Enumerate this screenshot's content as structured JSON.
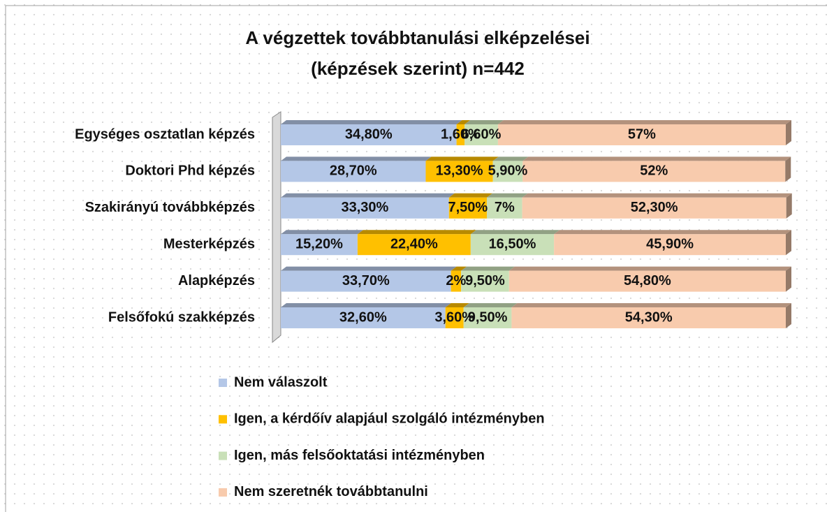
{
  "chart_data": {
    "type": "stacked-bar-horizontal",
    "title": [
      "A végzettek továbbtanulási elképzelései",
      "(képzések szerint) n=442"
    ],
    "categories": [
      "Egységes osztatlan képzés",
      "Doktori Phd képzés",
      "Szakirányú továbbképzés",
      "Mesterképzés",
      "Alapképzés",
      "Felsőfokú szakképzés"
    ],
    "xlim": [
      0,
      100
    ],
    "legend": "bottom",
    "series": [
      {
        "name": "Nem válaszolt",
        "color": "#b4c7e7",
        "values": [
          34.8,
          28.7,
          33.3,
          15.2,
          33.7,
          32.6
        ],
        "value_labels": [
          "34,80%",
          "28,70%",
          "33,30%",
          "15,20%",
          "33,70%",
          "32,60%"
        ]
      },
      {
        "name": "Igen, a kérdőív alapjául szolgáló intézményben",
        "color": "#ffc000",
        "values": [
          1.6,
          13.3,
          7.5,
          22.4,
          2,
          3.6
        ],
        "value_labels": [
          "1,60%",
          "13,30%",
          "7,50%",
          "22,40%",
          "2%",
          "3,60%"
        ]
      },
      {
        "name": "Igen, más felsőoktatási intézményben",
        "color": "#c9e0b8",
        "values": [
          6.6,
          5.9,
          7,
          16.5,
          9.5,
          9.5
        ],
        "value_labels": [
          "6,60%",
          "5,90%",
          "7%",
          "16,50%",
          "9,50%",
          "9,50%"
        ]
      },
      {
        "name": "Nem szeretnék továbbtanulni",
        "color": "#f8cbad",
        "values": [
          57,
          52,
          52.3,
          45.9,
          54.8,
          54.3
        ],
        "value_labels": [
          "57%",
          "52%",
          "52,30%",
          "45,90%",
          "54,80%",
          "54,30%"
        ]
      }
    ]
  }
}
